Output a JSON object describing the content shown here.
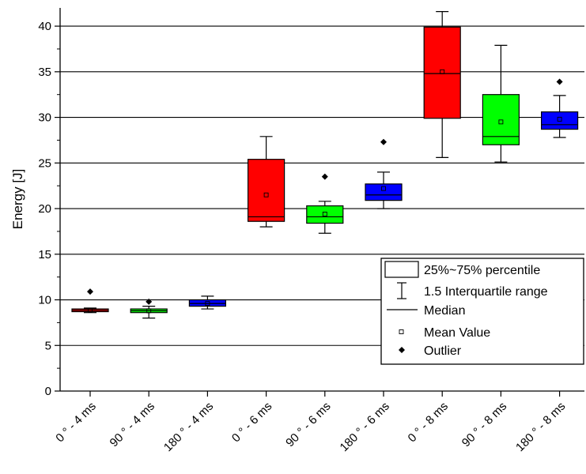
{
  "chart_data": {
    "type": "box",
    "title": "",
    "ylabel": "Energy [J]",
    "xlabel": "",
    "ylim": [
      0,
      42
    ],
    "yticks": [
      0,
      5,
      10,
      15,
      20,
      25,
      30,
      35,
      40
    ],
    "grid_lines": [
      5,
      10,
      15,
      20,
      25,
      30,
      35,
      40
    ],
    "colors": {
      "4 ms": "#ff0000",
      "90deg": "#00ff00",
      "180deg": "#0000ff",
      "red": "#ff0000",
      "green": "#00ff00",
      "blue": "#0000ff"
    },
    "categories": [
      "0 ° - 4 ms",
      "90 ° - 4 ms",
      "180 ° - 4 ms",
      "0 ° - 6 ms",
      "90 ° - 6 ms",
      "180 ° - 6 ms",
      "0 ° - 8 ms",
      "90 ° - 8 ms",
      "180 ° - 8 ms"
    ],
    "boxes": [
      {
        "color": "#ff0000",
        "whisker_low": 8.6,
        "q1": 8.7,
        "median": 8.85,
        "q3": 9.0,
        "whisker_high": 9.1,
        "mean": 8.85,
        "outliers": [
          10.9
        ]
      },
      {
        "color": "#00ff00",
        "whisker_low": 8.0,
        "q1": 8.6,
        "median": 8.8,
        "q3": 9.0,
        "whisker_high": 9.3,
        "mean": 8.8,
        "outliers": [
          9.8
        ]
      },
      {
        "color": "#0000ff",
        "whisker_low": 9.0,
        "q1": 9.3,
        "median": 9.6,
        "q3": 10.0,
        "whisker_high": 10.4,
        "mean": 9.6,
        "outliers": []
      },
      {
        "color": "#ff0000",
        "whisker_low": 18.0,
        "q1": 18.6,
        "median": 19.1,
        "q3": 25.4,
        "whisker_high": 27.9,
        "mean": 21.5,
        "outliers": []
      },
      {
        "color": "#00ff00",
        "whisker_low": 17.3,
        "q1": 18.4,
        "median": 19.1,
        "q3": 20.3,
        "whisker_high": 20.8,
        "mean": 19.4,
        "outliers": [
          23.5
        ]
      },
      {
        "color": "#0000ff",
        "whisker_low": 20.0,
        "q1": 20.9,
        "median": 21.5,
        "q3": 22.7,
        "whisker_high": 24.0,
        "mean": 22.2,
        "outliers": [
          27.3
        ]
      },
      {
        "color": "#ff0000",
        "whisker_low": 25.6,
        "q1": 29.9,
        "median": 34.8,
        "q3": 39.9,
        "whisker_high": 41.6,
        "mean": 35.0,
        "outliers": []
      },
      {
        "color": "#00ff00",
        "whisker_low": 25.1,
        "q1": 27.0,
        "median": 27.9,
        "q3": 32.5,
        "whisker_high": 37.9,
        "mean": 29.5,
        "outliers": []
      },
      {
        "color": "#0000ff",
        "whisker_low": 27.8,
        "q1": 28.7,
        "median": 29.2,
        "q3": 30.6,
        "whisker_high": 32.4,
        "mean": 29.8,
        "outliers": [
          33.9
        ]
      }
    ],
    "legend": {
      "placement": "right",
      "entries": [
        {
          "symbol": "box",
          "label": "25%~75% percentile"
        },
        {
          "symbol": "whisker",
          "label": "1.5 Interquartile range"
        },
        {
          "symbol": "median",
          "label": "Median"
        },
        {
          "symbol": "mean",
          "label": "Mean Value"
        },
        {
          "symbol": "outlier",
          "label": "Outlier"
        }
      ]
    }
  }
}
